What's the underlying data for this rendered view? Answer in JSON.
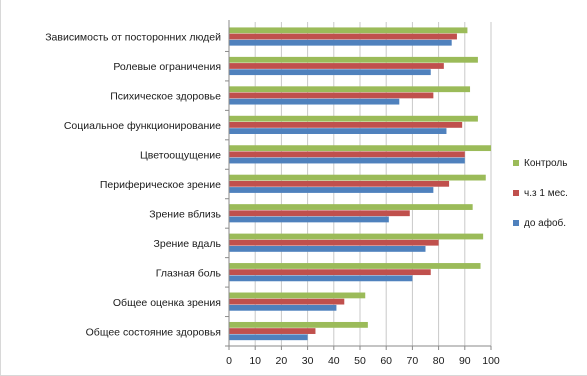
{
  "chart_data": {
    "type": "bar",
    "orientation": "horizontal",
    "categories": [
      "Общее состояние здоровья",
      "Общее оценка зрения",
      "Глазная боль",
      "Зрение вдаль",
      "Зрение вблизь",
      "Периферическое зрение",
      "Цветоощущение",
      "Социальное функционирование",
      "Психическое здоровье",
      "Ролевые ограничения",
      "Зависимость от посторонних людей"
    ],
    "series": [
      {
        "name": "до афоб.",
        "color": "#4f81bd",
        "values": [
          30,
          41,
          70,
          75,
          61,
          78,
          90,
          83,
          65,
          77,
          85
        ]
      },
      {
        "name": "ч.з 1 мес.",
        "color": "#c0504d",
        "values": [
          33,
          44,
          77,
          80,
          69,
          84,
          90,
          89,
          78,
          82,
          87
        ]
      },
      {
        "name": "Контроль",
        "color": "#9bbb59",
        "values": [
          53,
          52,
          96,
          97,
          93,
          98,
          100,
          95,
          92,
          95,
          91
        ]
      }
    ],
    "xlim": [
      0,
      100
    ],
    "xticks": [
      "0",
      "10",
      "20",
      "30",
      "40",
      "50",
      "60",
      "70",
      "80",
      "90",
      "100"
    ],
    "grid": "vertical",
    "legend": "right"
  }
}
